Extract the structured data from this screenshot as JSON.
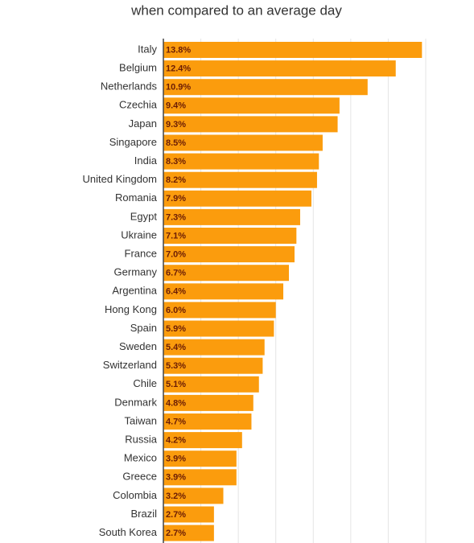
{
  "chart_data": {
    "type": "bar",
    "orientation": "horizontal",
    "title": "when compared to an average day",
    "categories": [
      "Italy",
      "Belgium",
      "Netherlands",
      "Czechia",
      "Japan",
      "Singapore",
      "India",
      "United Kingdom",
      "Romania",
      "Egypt",
      "Ukraine",
      "France",
      "Germany",
      "Argentina",
      "Hong Kong",
      "Spain",
      "Sweden",
      "Switzerland",
      "Chile",
      "Denmark",
      "Taiwan",
      "Russia",
      "Mexico",
      "Greece",
      "Colombia",
      "Brazil",
      "South Korea"
    ],
    "values": [
      13.8,
      12.4,
      10.9,
      9.4,
      9.3,
      8.5,
      8.3,
      8.2,
      7.9,
      7.3,
      7.1,
      7.0,
      6.7,
      6.4,
      6.0,
      5.9,
      5.4,
      5.3,
      5.1,
      4.8,
      4.7,
      4.2,
      3.9,
      3.9,
      3.2,
      2.7,
      2.7
    ],
    "value_labels": [
      "13.8%",
      "12.4%",
      "10.9%",
      "9.4%",
      "9.3%",
      "8.5%",
      "8.3%",
      "8.2%",
      "7.9%",
      "7.3%",
      "7.1%",
      "7.0%",
      "6.7%",
      "6.4%",
      "6.0%",
      "5.9%",
      "5.4%",
      "5.3%",
      "5.1%",
      "4.8%",
      "4.7%",
      "4.2%",
      "3.9%",
      "3.9%",
      "3.2%",
      "2.7%",
      "2.7%"
    ],
    "color": "#fb9c0d",
    "xlim": [
      0,
      14
    ],
    "xticks": [
      0,
      2,
      4,
      6,
      8,
      10,
      12,
      14
    ],
    "grid": true
  }
}
